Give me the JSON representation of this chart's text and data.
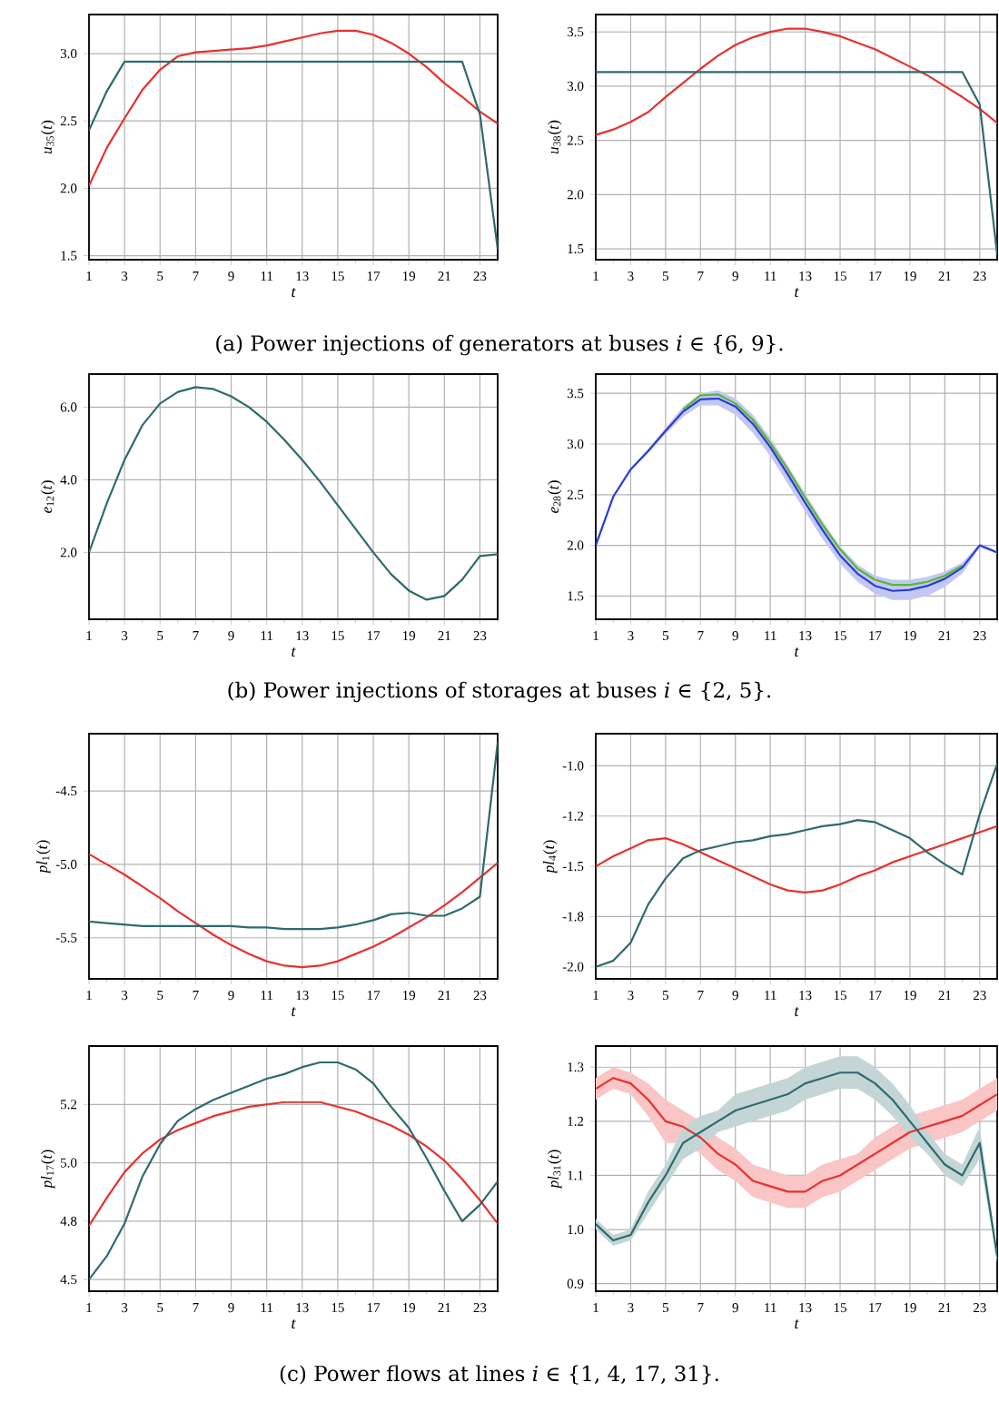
{
  "chart_data": [
    {
      "type": "line",
      "ylabel": "*u*$_{35}$(*t*)",
      "xlabel": "t",
      "x": [
        1,
        2,
        3,
        4,
        5,
        6,
        7,
        8,
        9,
        10,
        11,
        12,
        13,
        14,
        15,
        16,
        17,
        18,
        19,
        20,
        21,
        22,
        23,
        24
      ],
      "xlim": [
        1,
        24
      ],
      "ylim": [
        1.47,
        3.29
      ],
      "grid": true,
      "xticks": [
        1,
        {
          "value": 2,
          "label": null
        },
        3,
        {
          "value": 4,
          "label": null
        },
        5,
        {
          "value": 6,
          "label": null
        },
        7,
        {
          "value": 8,
          "label": null
        },
        9,
        {
          "value": 10,
          "label": null
        },
        11,
        {
          "value": 12,
          "label": null
        },
        13,
        {
          "value": 14,
          "label": null
        },
        15,
        {
          "value": 16,
          "label": null
        },
        17,
        {
          "value": 18,
          "label": null
        },
        19,
        {
          "value": 20,
          "label": null
        },
        21,
        {
          "value": 22,
          "label": null
        },
        23,
        {
          "value": 24,
          "label": null
        }
      ],
      "yticks": [
        1.5,
        {
          "value": 2,
          "label": "2.0"
        },
        2.5,
        {
          "value": 3,
          "label": "3.0"
        }
      ],
      "series": [
        {
          "color": "#e8312f",
          "values": [
            2.02,
            2.3,
            2.52,
            2.73,
            2.88,
            2.98,
            3.01,
            3.02,
            3.03,
            3.04,
            3.06,
            3.09,
            3.12,
            3.15,
            3.17,
            3.17,
            3.14,
            3.08,
            3.0,
            2.9,
            2.78,
            2.68,
            2.57,
            2.48
          ]
        },
        {
          "color": "#2e6a6e",
          "values": [
            2.43,
            2.72,
            2.94,
            2.94,
            2.94,
            2.94,
            2.94,
            2.94,
            2.94,
            2.94,
            2.94,
            2.94,
            2.94,
            2.94,
            2.94,
            2.94,
            2.94,
            2.94,
            2.94,
            2.94,
            2.94,
            2.94,
            2.55,
            1.55
          ]
        }
      ],
      "annotations": [
        "(a) Power injections of generators at buses *i* ∈ {6, 9}."
      ]
    },
    {
      "type": "line",
      "ylabel": "*u*$_{38}$(*t*)",
      "xlabel": "t",
      "x": [
        1,
        2,
        3,
        4,
        5,
        6,
        7,
        8,
        9,
        10,
        11,
        12,
        13,
        14,
        15,
        16,
        17,
        18,
        19,
        20,
        21,
        22,
        23,
        24
      ],
      "xlim": [
        1,
        24
      ],
      "ylim": [
        1.4,
        3.66
      ],
      "grid": true,
      "xticks": [
        1,
        {
          "value": 2,
          "label": null
        },
        3,
        {
          "value": 4,
          "label": null
        },
        5,
        {
          "value": 6,
          "label": null
        },
        7,
        {
          "value": 8,
          "label": null
        },
        9,
        {
          "value": 10,
          "label": null
        },
        11,
        {
          "value": 12,
          "label": null
        },
        13,
        {
          "value": 14,
          "label": null
        },
        15,
        {
          "value": 16,
          "label": null
        },
        17,
        {
          "value": 18,
          "label": null
        },
        19,
        {
          "value": 20,
          "label": null
        },
        21,
        {
          "value": 22,
          "label": null
        },
        23,
        {
          "value": 24,
          "label": null
        }
      ],
      "yticks": [
        1.5,
        {
          "value": 2,
          "label": "2.0"
        },
        2.5,
        {
          "value": 3,
          "label": "3.0"
        },
        3.5
      ],
      "series": [
        {
          "color": "#e8312f",
          "values": [
            2.55,
            2.6,
            2.67,
            2.76,
            2.9,
            3.03,
            3.16,
            3.28,
            3.38,
            3.45,
            3.5,
            3.53,
            3.53,
            3.5,
            3.46,
            3.4,
            3.34,
            3.26,
            3.18,
            3.1,
            3.0,
            2.9,
            2.79,
            2.66
          ]
        },
        {
          "color": "#2e6a6e",
          "values": [
            3.13,
            3.13,
            3.13,
            3.13,
            3.13,
            3.13,
            3.13,
            3.13,
            3.13,
            3.13,
            3.13,
            3.13,
            3.13,
            3.13,
            3.13,
            3.13,
            3.13,
            3.13,
            3.13,
            3.13,
            3.13,
            3.13,
            2.83,
            1.45
          ]
        }
      ]
    },
    {
      "type": "line",
      "ylabel": "*e*$_{12}$(*t*)",
      "xlabel": "t",
      "x": [
        1,
        2,
        3,
        4,
        5,
        6,
        7,
        8,
        9,
        10,
        11,
        12,
        13,
        14,
        15,
        16,
        17,
        18,
        19,
        20,
        21,
        22,
        23,
        24
      ],
      "xlim": [
        1,
        24
      ],
      "ylim": [
        0.16,
        6.91
      ],
      "grid": true,
      "xticks": [
        1,
        {
          "value": 2,
          "label": null
        },
        3,
        {
          "value": 4,
          "label": null
        },
        5,
        {
          "value": 6,
          "label": null
        },
        7,
        {
          "value": 8,
          "label": null
        },
        9,
        {
          "value": 10,
          "label": null
        },
        11,
        {
          "value": 12,
          "label": null
        },
        13,
        {
          "value": 14,
          "label": null
        },
        15,
        {
          "value": 16,
          "label": null
        },
        17,
        {
          "value": 18,
          "label": null
        },
        19,
        {
          "value": 20,
          "label": null
        },
        21,
        {
          "value": 22,
          "label": null
        },
        23,
        {
          "value": 24,
          "label": null
        }
      ],
      "yticks": [
        {
          "value": 2,
          "label": "2.0"
        },
        {
          "value": 4,
          "label": "4.0"
        },
        {
          "value": 6,
          "label": "6.0"
        }
      ],
      "series": [
        {
          "color": "#2e6a6e",
          "values": [
            2.0,
            3.35,
            4.55,
            5.5,
            6.1,
            6.42,
            6.55,
            6.5,
            6.3,
            6.0,
            5.6,
            5.1,
            4.55,
            3.95,
            3.3,
            2.65,
            2.0,
            1.4,
            0.95,
            0.7,
            0.8,
            1.25,
            1.9,
            1.95
          ]
        }
      ],
      "annotations": [
        "(b) Power injections of storages at buses *i* ∈ {2, 5}."
      ]
    },
    {
      "type": "line",
      "ylabel": "*e*$_{28}$(*t*)",
      "xlabel": "t",
      "x": [
        1,
        2,
        3,
        4,
        5,
        6,
        7,
        8,
        9,
        10,
        11,
        12,
        13,
        14,
        15,
        16,
        17,
        18,
        19,
        20,
        21,
        22,
        23,
        24
      ],
      "xlim": [
        1,
        24
      ],
      "ylim": [
        1.27,
        3.69
      ],
      "grid": true,
      "xticks": [
        1,
        {
          "value": 2,
          "label": null
        },
        3,
        {
          "value": 4,
          "label": null
        },
        5,
        {
          "value": 6,
          "label": null
        },
        7,
        {
          "value": 8,
          "label": null
        },
        9,
        {
          "value": 10,
          "label": null
        },
        11,
        {
          "value": 12,
          "label": null
        },
        13,
        {
          "value": 14,
          "label": null
        },
        15,
        {
          "value": 16,
          "label": null
        },
        17,
        {
          "value": 18,
          "label": null
        },
        19,
        {
          "value": 20,
          "label": null
        },
        21,
        {
          "value": 22,
          "label": null
        },
        23,
        {
          "value": 24,
          "label": null
        }
      ],
      "yticks": [
        1.5,
        {
          "value": 2,
          "label": "2.0"
        },
        2.5,
        {
          "value": 3,
          "label": "3.0"
        },
        3.5
      ],
      "series": [
        {
          "color": "#5cb82e",
          "values": [
            null,
            null,
            null,
            null,
            null,
            3.34,
            3.48,
            3.49,
            3.4,
            3.24,
            3.01,
            2.75,
            2.47,
            2.2,
            1.96,
            1.77,
            1.66,
            1.61,
            1.61,
            1.64,
            1.7,
            1.8,
            null,
            null
          ]
        },
        {
          "color": "#2a3cd4",
          "values": [
            2.0,
            2.48,
            2.75,
            2.93,
            3.13,
            3.32,
            3.44,
            3.45,
            3.37,
            3.2,
            2.97,
            2.7,
            2.42,
            2.15,
            1.9,
            1.72,
            1.6,
            1.55,
            1.56,
            1.6,
            1.67,
            1.78,
            2.0,
            1.93
          ],
          "lower": [
            2.0,
            2.47,
            2.74,
            2.91,
            3.1,
            3.27,
            3.38,
            3.38,
            3.29,
            3.11,
            2.88,
            2.61,
            2.33,
            2.06,
            1.82,
            1.64,
            1.52,
            1.46,
            1.46,
            1.5,
            1.59,
            1.72,
            1.98,
            1.92
          ],
          "upper": [
            2.0,
            2.49,
            2.76,
            2.95,
            3.16,
            3.37,
            3.5,
            3.53,
            3.45,
            3.29,
            3.06,
            2.79,
            2.51,
            2.24,
            1.99,
            1.81,
            1.7,
            1.66,
            1.66,
            1.69,
            1.74,
            1.83,
            2.02,
            1.94
          ]
        }
      ]
    },
    {
      "type": "line",
      "ylabel": "*pl*$_{1}$(*t*)",
      "xlabel": "t",
      "x": [
        1,
        2,
        3,
        4,
        5,
        6,
        7,
        8,
        9,
        10,
        11,
        12,
        13,
        14,
        15,
        16,
        17,
        18,
        19,
        20,
        21,
        22,
        23,
        24
      ],
      "xlim": [
        1,
        24
      ],
      "ylim": [
        -5.78,
        -4.11
      ],
      "grid": true,
      "xticks": [
        1,
        {
          "value": 2,
          "label": null
        },
        3,
        {
          "value": 4,
          "label": null
        },
        5,
        {
          "value": 6,
          "label": null
        },
        7,
        {
          "value": 8,
          "label": null
        },
        9,
        {
          "value": 10,
          "label": null
        },
        11,
        {
          "value": 12,
          "label": null
        },
        13,
        {
          "value": 14,
          "label": null
        },
        15,
        {
          "value": 16,
          "label": null
        },
        17,
        {
          "value": 18,
          "label": null
        },
        19,
        {
          "value": 20,
          "label": null
        },
        21,
        {
          "value": 22,
          "label": null
        },
        23,
        {
          "value": 24,
          "label": null
        }
      ],
      "yticks": [
        -5.5,
        {
          "value": -5,
          "label": "-5.0"
        },
        -4.5
      ],
      "series": [
        {
          "color": "#e8312f",
          "values": [
            -4.93,
            -5.0,
            -5.07,
            -5.15,
            -5.23,
            -5.32,
            -5.4,
            -5.48,
            -5.55,
            -5.61,
            -5.66,
            -5.69,
            -5.7,
            -5.69,
            -5.66,
            -5.61,
            -5.56,
            -5.5,
            -5.43,
            -5.36,
            -5.28,
            -5.19,
            -5.09,
            -4.99
          ]
        },
        {
          "color": "#2e6a6e",
          "values": [
            -5.39,
            -5.4,
            -5.41,
            -5.42,
            -5.42,
            -5.42,
            -5.42,
            -5.42,
            -5.42,
            -5.43,
            -5.43,
            -5.44,
            -5.44,
            -5.44,
            -5.43,
            -5.41,
            -5.38,
            -5.34,
            -5.33,
            -5.35,
            -5.35,
            -5.3,
            -5.22,
            -4.17
          ]
        }
      ]
    },
    {
      "type": "line",
      "ylabel": "*pl*$_{4}$(*t*)",
      "xlabel": "t",
      "x": [
        1,
        2,
        3,
        4,
        5,
        6,
        7,
        8,
        9,
        10,
        11,
        12,
        13,
        14,
        15,
        16,
        17,
        18,
        19,
        20,
        21,
        22,
        23,
        24
      ],
      "xlim": [
        1,
        24
      ],
      "ylim": [
        -2.06,
        -0.84
      ],
      "grid": true,
      "xticks": [
        1,
        {
          "value": 2,
          "label": null
        },
        3,
        {
          "value": 4,
          "label": null
        },
        5,
        {
          "value": 6,
          "label": null
        },
        7,
        {
          "value": 8,
          "label": null
        },
        9,
        {
          "value": 10,
          "label": null
        },
        11,
        {
          "value": 12,
          "label": null
        },
        13,
        {
          "value": 14,
          "label": null
        },
        15,
        {
          "value": 16,
          "label": null
        },
        17,
        {
          "value": 18,
          "label": null
        },
        19,
        {
          "value": 20,
          "label": null
        },
        21,
        {
          "value": 22,
          "label": null
        },
        23,
        {
          "value": 24,
          "label": null
        }
      ],
      "yticks": [
        {
          "value": -2,
          "label": "-2.0"
        },
        {
          "value": -1.75,
          "label": "-1.8"
        },
        -1.5,
        {
          "value": -1.25,
          "label": "-1.2"
        },
        {
          "value": -1,
          "label": "-1.0"
        }
      ],
      "series": [
        {
          "color": "#e8312f",
          "values": [
            -1.5,
            -1.45,
            -1.41,
            -1.37,
            -1.36,
            -1.39,
            -1.43,
            -1.47,
            -1.51,
            -1.55,
            -1.59,
            -1.62,
            -1.63,
            -1.62,
            -1.59,
            -1.55,
            -1.52,
            -1.48,
            -1.45,
            -1.42,
            -1.39,
            -1.36,
            -1.33,
            -1.3
          ]
        },
        {
          "color": "#2e6a6e",
          "values": [
            -2.0,
            -1.97,
            -1.88,
            -1.69,
            -1.56,
            -1.46,
            -1.42,
            -1.4,
            -1.38,
            -1.37,
            -1.35,
            -1.34,
            -1.32,
            -1.3,
            -1.29,
            -1.27,
            -1.28,
            -1.32,
            -1.36,
            -1.43,
            -1.49,
            -1.54,
            -1.24,
            -0.99
          ]
        }
      ]
    },
    {
      "type": "line",
      "ylabel": "*pl*$_{17}$(*t*)",
      "xlabel": "t",
      "x": [
        1,
        2,
        3,
        4,
        5,
        6,
        7,
        8,
        9,
        10,
        11,
        12,
        13,
        14,
        15,
        16,
        17,
        18,
        19,
        20,
        21,
        22,
        23,
        24
      ],
      "xlim": [
        1,
        24
      ],
      "ylim": [
        4.45,
        5.5
      ],
      "grid": true,
      "xticks": [
        1,
        {
          "value": 2,
          "label": null
        },
        3,
        {
          "value": 4,
          "label": null
        },
        5,
        {
          "value": 6,
          "label": null
        },
        7,
        {
          "value": 8,
          "label": null
        },
        9,
        {
          "value": 10,
          "label": null
        },
        11,
        {
          "value": 12,
          "label": null
        },
        13,
        {
          "value": 14,
          "label": null
        },
        15,
        {
          "value": 16,
          "label": null
        },
        17,
        {
          "value": 18,
          "label": null
        },
        19,
        {
          "value": 20,
          "label": null
        },
        21,
        {
          "value": 22,
          "label": null
        },
        23,
        {
          "value": 24,
          "label": null
        }
      ],
      "yticks": [
        4.5,
        {
          "value": 4.75,
          "label": "4.8"
        },
        {
          "value": 5,
          "label": "5.0"
        },
        {
          "value": 5.25,
          "label": "5.2"
        }
      ],
      "series": [
        {
          "color": "#e8312f",
          "values": [
            4.73,
            4.85,
            4.96,
            5.04,
            5.1,
            5.14,
            5.17,
            5.2,
            5.22,
            5.24,
            5.25,
            5.26,
            5.26,
            5.26,
            5.24,
            5.22,
            5.19,
            5.16,
            5.12,
            5.07,
            5.01,
            4.93,
            4.84,
            4.74
          ]
        },
        {
          "color": "#2e6a6e",
          "values": [
            4.5,
            4.6,
            4.74,
            4.94,
            5.08,
            5.18,
            5.23,
            5.27,
            5.3,
            5.33,
            5.36,
            5.38,
            5.41,
            5.43,
            5.43,
            5.4,
            5.34,
            5.24,
            5.15,
            5.02,
            4.88,
            4.75,
            4.82,
            4.92
          ]
        }
      ],
      "annotations": [
        "(c) Power flows at lines *i* ∈ {1, 4, 17, 31}."
      ]
    },
    {
      "type": "line",
      "ylabel": "*pl*$_{31}$(*t*)",
      "xlabel": "t",
      "x": [
        1,
        2,
        3,
        4,
        5,
        6,
        7,
        8,
        9,
        10,
        11,
        12,
        13,
        14,
        15,
        16,
        17,
        18,
        19,
        20,
        21,
        22,
        23,
        24
      ],
      "xlim": [
        1,
        24
      ],
      "ylim": [
        0.886,
        1.339
      ],
      "grid": true,
      "xticks": [
        1,
        {
          "value": 2,
          "label": null
        },
        3,
        {
          "value": 4,
          "label": null
        },
        5,
        {
          "value": 6,
          "label": null
        },
        7,
        {
          "value": 8,
          "label": null
        },
        9,
        {
          "value": 10,
          "label": null
        },
        11,
        {
          "value": 12,
          "label": null
        },
        13,
        {
          "value": 14,
          "label": null
        },
        15,
        {
          "value": 16,
          "label": null
        },
        17,
        {
          "value": 18,
          "label": null
        },
        19,
        {
          "value": 20,
          "label": null
        },
        21,
        {
          "value": 22,
          "label": null
        },
        23,
        {
          "value": 24,
          "label": null
        }
      ],
      "yticks": [
        0.9,
        {
          "value": 1,
          "label": "1.0"
        },
        1.1,
        1.2,
        1.3
      ],
      "series": [
        {
          "color": "#e8312f",
          "values": [
            1.26,
            1.28,
            1.27,
            1.24,
            1.2,
            1.19,
            1.17,
            1.14,
            1.12,
            1.09,
            1.08,
            1.07,
            1.07,
            1.09,
            1.1,
            1.12,
            1.14,
            1.16,
            1.18,
            1.19,
            1.2,
            1.21,
            1.23,
            1.25
          ],
          "lower": [
            1.24,
            1.26,
            1.25,
            1.21,
            1.16,
            1.16,
            1.14,
            1.11,
            1.09,
            1.06,
            1.05,
            1.04,
            1.04,
            1.06,
            1.07,
            1.09,
            1.11,
            1.13,
            1.15,
            1.16,
            1.17,
            1.18,
            1.2,
            1.22
          ],
          "upper": [
            1.28,
            1.3,
            1.29,
            1.27,
            1.24,
            1.22,
            1.2,
            1.17,
            1.15,
            1.12,
            1.11,
            1.1,
            1.1,
            1.12,
            1.13,
            1.14,
            1.17,
            1.19,
            1.21,
            1.22,
            1.23,
            1.24,
            1.26,
            1.28
          ]
        },
        {
          "color": "#2e6a6e",
          "values": [
            1.01,
            0.98,
            0.99,
            1.05,
            1.1,
            1.16,
            1.18,
            1.2,
            1.22,
            1.23,
            1.24,
            1.25,
            1.27,
            1.28,
            1.29,
            1.29,
            1.27,
            1.24,
            1.2,
            1.16,
            1.12,
            1.1,
            1.16,
            0.95
          ],
          "lower": [
            1.0,
            0.97,
            0.98,
            1.03,
            1.08,
            1.13,
            1.15,
            1.18,
            1.19,
            1.2,
            1.21,
            1.22,
            1.24,
            1.25,
            1.26,
            1.26,
            1.24,
            1.21,
            1.17,
            1.14,
            1.1,
            1.08,
            1.13,
            0.94
          ],
          "upper": [
            1.02,
            0.99,
            1.0,
            1.07,
            1.12,
            1.19,
            1.21,
            1.22,
            1.25,
            1.26,
            1.27,
            1.28,
            1.3,
            1.31,
            1.32,
            1.32,
            1.3,
            1.27,
            1.23,
            1.18,
            1.14,
            1.12,
            1.19,
            0.96
          ]
        }
      ]
    }
  ]
}
